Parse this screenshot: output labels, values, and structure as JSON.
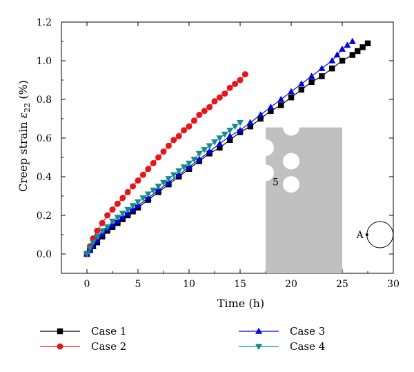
{
  "chart_data": {
    "type": "line",
    "title": "",
    "xlabel": "Time (h)",
    "ylabel_prefix": "Creep strain ",
    "ylabel_symbol": "ε",
    "ylabel_sub": "22",
    "ylabel_suffix": " (%)",
    "xlim": [
      -2.5,
      30
    ],
    "ylim": [
      -0.1,
      1.2
    ],
    "xticks": [
      0,
      5,
      10,
      15,
      20,
      25,
      30
    ],
    "yticks": [
      0.0,
      0.2,
      0.4,
      0.6,
      0.8,
      1.0,
      1.2
    ],
    "xtick_labels": [
      "0",
      "5",
      "10",
      "15",
      "20",
      "25",
      "30"
    ],
    "ytick_labels": [
      "0.0",
      "0.2",
      "0.4",
      "0.6",
      "0.8",
      "1.0",
      "1.2"
    ],
    "grid": false,
    "legend_position": "bottom",
    "series": [
      {
        "name": "Case 1",
        "color": "#000000",
        "marker": "square",
        "x": [
          0,
          0.3,
          0.6,
          1,
          1.5,
          2,
          2.5,
          3,
          3.5,
          4,
          4.5,
          5,
          6,
          7,
          8,
          9,
          10,
          11,
          12,
          13,
          14,
          15,
          16,
          17,
          18,
          19,
          20,
          21,
          22,
          23,
          24,
          25,
          26,
          26.5,
          27,
          27.5
        ],
        "y": [
          0,
          0.02,
          0.04,
          0.06,
          0.09,
          0.12,
          0.14,
          0.16,
          0.18,
          0.2,
          0.22,
          0.24,
          0.28,
          0.32,
          0.36,
          0.4,
          0.44,
          0.48,
          0.52,
          0.55,
          0.59,
          0.63,
          0.66,
          0.7,
          0.74,
          0.77,
          0.81,
          0.85,
          0.89,
          0.92,
          0.96,
          1.0,
          1.03,
          1.05,
          1.07,
          1.09
        ]
      },
      {
        "name": "Case 2",
        "color": "#e8141a",
        "marker": "circle",
        "x": [
          0,
          0.3,
          0.6,
          1,
          1.5,
          2,
          2.5,
          3,
          3.5,
          4,
          4.5,
          5,
          5.5,
          6,
          6.5,
          7,
          7.5,
          8,
          8.5,
          9,
          9.5,
          10,
          10.5,
          11,
          11.5,
          12,
          12.5,
          13,
          13.5,
          14,
          14.5,
          15,
          15.5
        ],
        "y": [
          0,
          0.04,
          0.08,
          0.12,
          0.16,
          0.2,
          0.23,
          0.26,
          0.29,
          0.32,
          0.35,
          0.38,
          0.41,
          0.44,
          0.47,
          0.5,
          0.53,
          0.56,
          0.59,
          0.61,
          0.64,
          0.66,
          0.69,
          0.72,
          0.74,
          0.76,
          0.79,
          0.81,
          0.83,
          0.86,
          0.88,
          0.9,
          0.93
        ]
      },
      {
        "name": "Case 3",
        "color": "#0000e6",
        "marker": "triangle-up",
        "x": [
          0,
          0.3,
          0.6,
          1,
          1.5,
          2,
          2.5,
          3,
          3.5,
          4,
          4.5,
          5,
          6,
          7,
          8,
          9,
          10,
          11,
          12,
          13,
          14,
          15,
          16,
          17,
          18,
          19,
          20,
          21,
          22,
          23,
          24,
          24.5,
          25,
          25.5,
          26
        ],
        "y": [
          0,
          0.02,
          0.04,
          0.07,
          0.1,
          0.13,
          0.15,
          0.17,
          0.19,
          0.21,
          0.23,
          0.25,
          0.29,
          0.33,
          0.37,
          0.41,
          0.45,
          0.49,
          0.53,
          0.57,
          0.61,
          0.64,
          0.68,
          0.72,
          0.76,
          0.8,
          0.84,
          0.88,
          0.92,
          0.96,
          1.0,
          1.03,
          1.06,
          1.08,
          1.1
        ]
      },
      {
        "name": "Case 4",
        "color": "#138c8c",
        "marker": "triangle-down",
        "x": [
          0,
          0.3,
          0.6,
          1,
          1.5,
          2,
          2.5,
          3,
          3.5,
          4,
          4.5,
          5,
          5.5,
          6,
          6.5,
          7,
          7.5,
          8,
          8.5,
          9,
          9.5,
          10,
          10.5,
          11,
          11.5,
          12,
          12.5,
          13,
          13.5,
          14,
          14.5,
          15
        ],
        "y": [
          0,
          0.03,
          0.06,
          0.09,
          0.12,
          0.14,
          0.17,
          0.19,
          0.21,
          0.23,
          0.25,
          0.27,
          0.29,
          0.31,
          0.33,
          0.35,
          0.37,
          0.39,
          0.41,
          0.43,
          0.45,
          0.47,
          0.49,
          0.52,
          0.54,
          0.56,
          0.58,
          0.6,
          0.62,
          0.64,
          0.66,
          0.68
        ]
      }
    ],
    "inset": {
      "notch_label": "5",
      "point_label": "A",
      "plate_color": "#c0c0c0"
    }
  }
}
